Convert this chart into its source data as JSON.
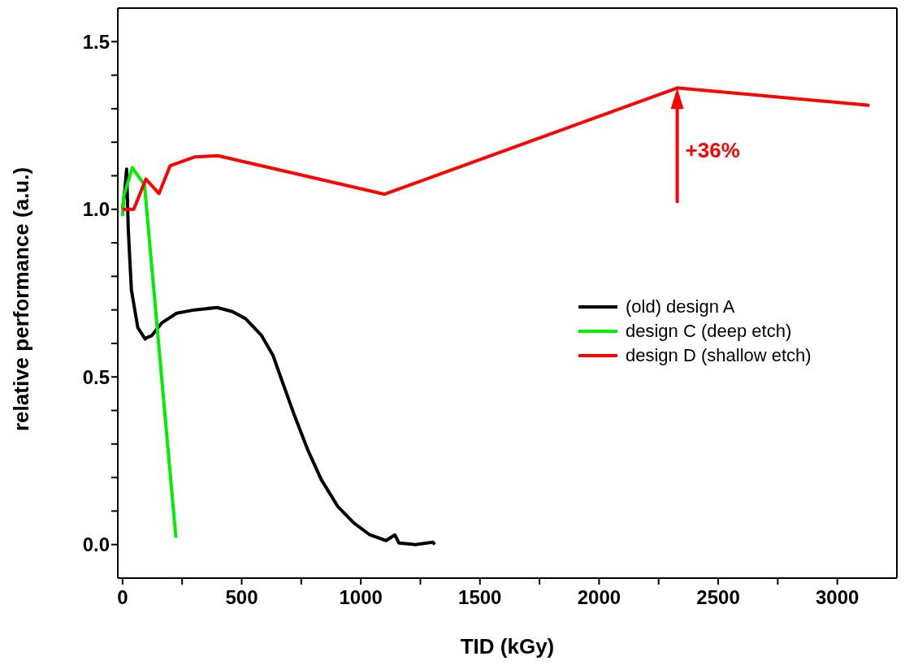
{
  "chart_data": {
    "type": "line",
    "xlabel": "TID (kGy)",
    "ylabel": "relative performance (a.u.)",
    "xlim": [
      -20,
      3250
    ],
    "ylim": [
      -0.1,
      1.6
    ],
    "xticks": [
      0,
      {
        "value": 250,
        "label": null
      },
      500,
      {
        "value": 750,
        "label": null
      },
      1000,
      {
        "value": 1250,
        "label": null
      },
      1500,
      {
        "value": 1750,
        "label": null
      },
      2000,
      {
        "value": 2250,
        "label": null
      },
      2500,
      {
        "value": 2750,
        "label": null
      },
      3000
    ],
    "yticks": [
      {
        "value": 0,
        "label": "0.0"
      },
      {
        "value": 0.1,
        "label": null
      },
      {
        "value": 0.2,
        "label": null
      },
      {
        "value": 0.3,
        "label": null
      },
      {
        "value": 0.4,
        "label": null
      },
      0.5,
      {
        "value": 0.6,
        "label": null
      },
      {
        "value": 0.7,
        "label": null
      },
      {
        "value": 0.8,
        "label": null
      },
      {
        "value": 0.9,
        "label": null
      },
      {
        "value": 1,
        "label": "1.0"
      },
      {
        "value": 1.1,
        "label": null
      },
      {
        "value": 1.2,
        "label": null
      },
      {
        "value": 1.3,
        "label": null
      },
      {
        "value": 1.4,
        "label": null
      },
      1.5
    ],
    "series": [
      {
        "name": "(old) design A",
        "color": "#000000",
        "x": [
          0,
          10,
          17,
          24,
          37,
          64,
          95,
          98,
          122,
          166,
          227,
          302,
          397,
          461,
          516,
          584,
          631,
          675,
          720,
          777,
          834,
          903,
          970,
          1038,
          1106,
          1143,
          1160,
          1228,
          1303,
          1310
        ],
        "values": [
          1.0,
          1.06,
          1.12,
          0.94,
          0.76,
          0.647,
          0.613,
          0.616,
          0.623,
          0.662,
          0.69,
          0.7,
          0.707,
          0.695,
          0.674,
          0.623,
          0.565,
          0.477,
          0.388,
          0.283,
          0.194,
          0.114,
          0.065,
          0.029,
          0.012,
          0.029,
          0.005,
          0.0,
          0.007,
          0.0
        ]
      },
      {
        "name": "design C (deep etch)",
        "color": "#00ee00",
        "x": [
          0,
          5,
          41,
          92,
          224
        ],
        "values": [
          0.98,
          1.04,
          1.124,
          1.073,
          0.02
        ]
      },
      {
        "name": "design D (shallow etch)",
        "color": "#ff0000",
        "x": [
          0,
          47,
          98,
          153,
          200,
          302,
          400,
          1100,
          2328,
          3135
        ],
        "values": [
          1.0,
          1.0,
          1.09,
          1.047,
          1.13,
          1.156,
          1.16,
          1.045,
          1.362,
          1.31
        ]
      }
    ],
    "annotations": [
      {
        "text": "+36%",
        "x": 2328,
        "y": 1.362
      }
    ],
    "legend": "right",
    "marker": "none",
    "line_style": "solid",
    "grid": false
  }
}
